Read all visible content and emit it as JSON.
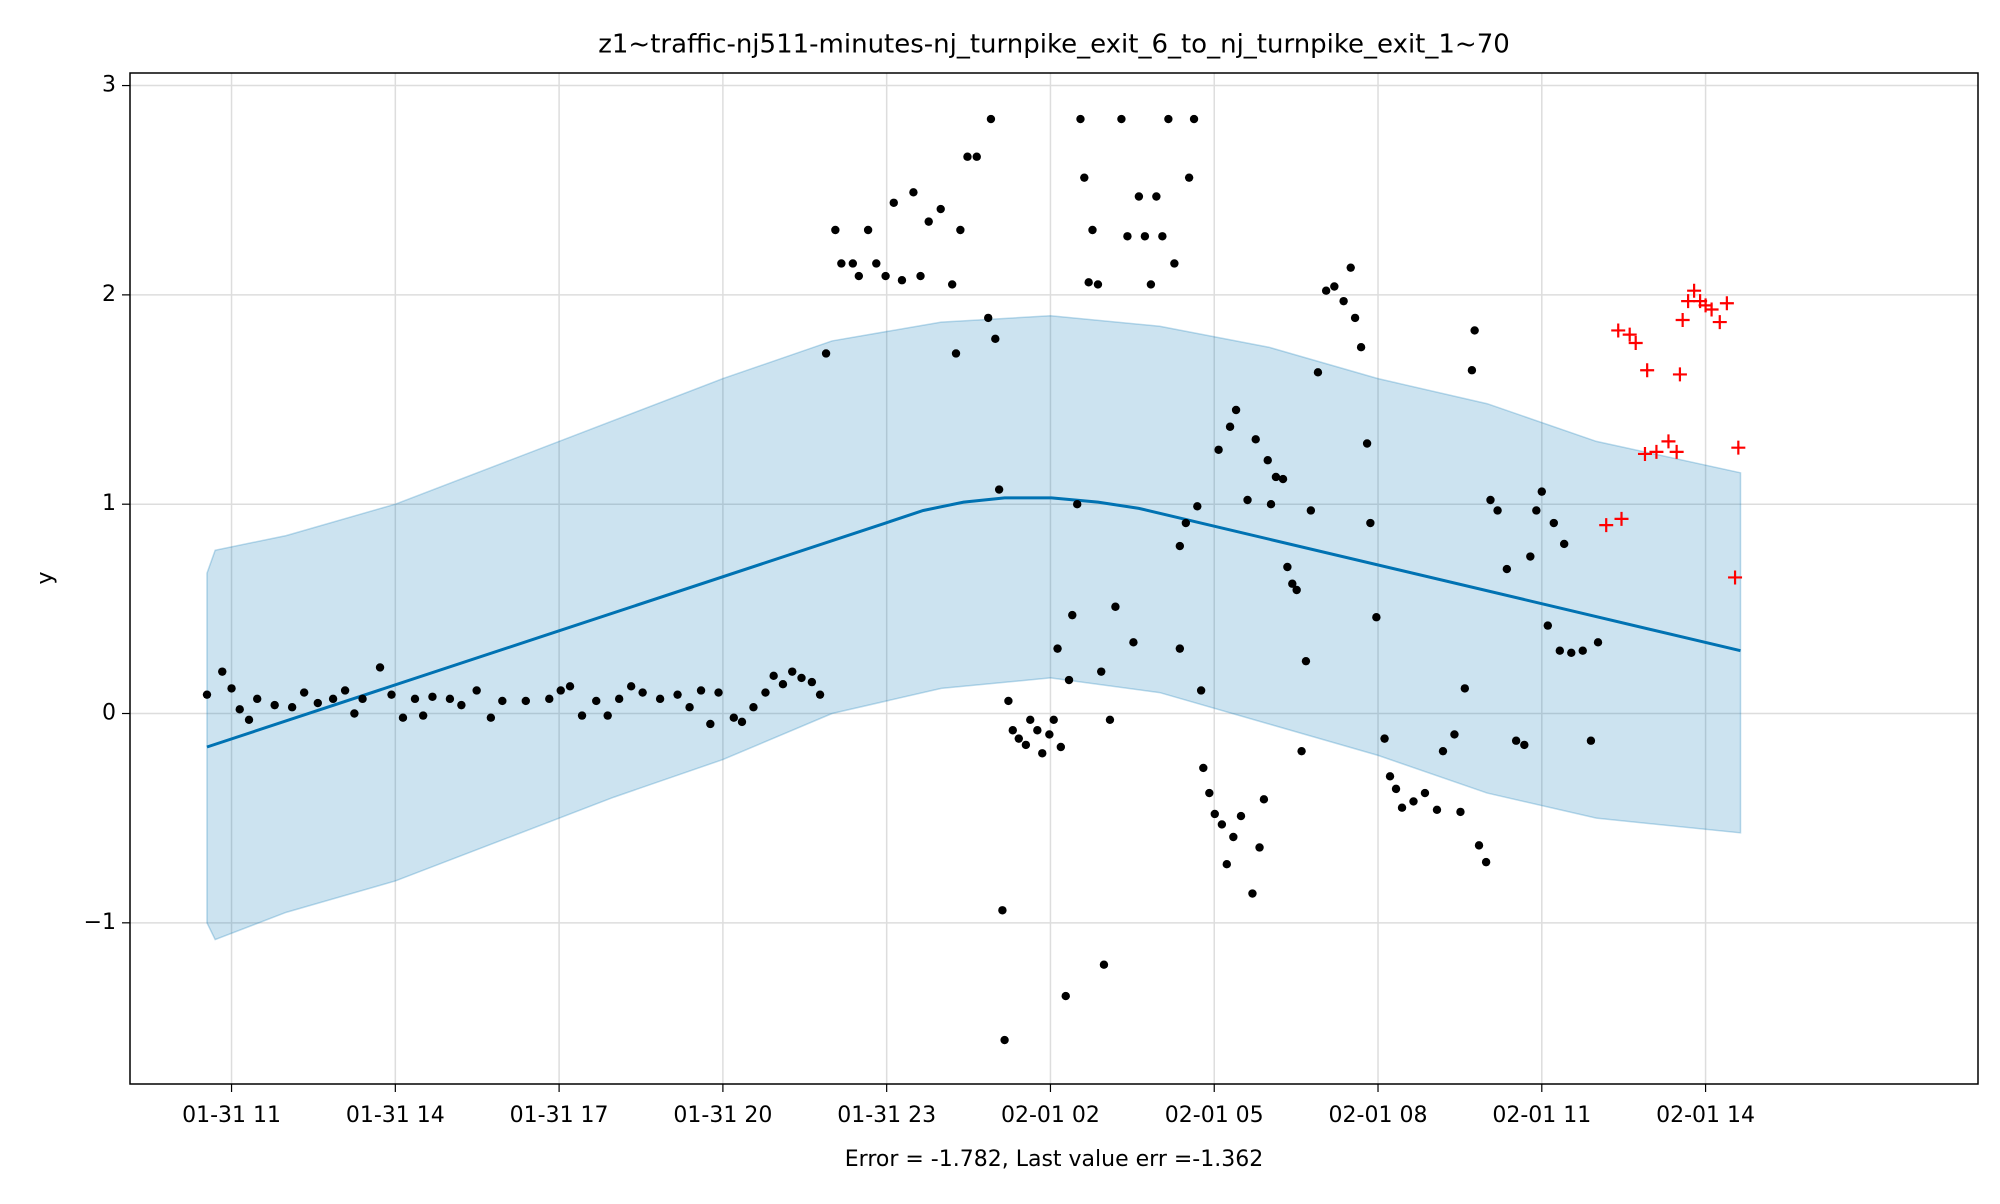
{
  "chart_data": {
    "type": "forecast",
    "title": "z1~traffic-nj511-minutes-nj_turnpike_exit_6_to_nj_turnpike_exit_1~70",
    "x_label": "Error = -1.782, Last value err =-1.362",
    "y_label": "y",
    "xlim": [
      9.14,
      42.99
    ],
    "ylim": [
      -1.77,
      3.06
    ],
    "xticks": [
      {
        "value": 11,
        "label": "01-31 11"
      },
      {
        "value": 14,
        "label": "01-31 14"
      },
      {
        "value": 17,
        "label": "01-31 17"
      },
      {
        "value": 20,
        "label": "01-31 20"
      },
      {
        "value": 23,
        "label": "01-31 23"
      },
      {
        "value": 26,
        "label": "02-01 02"
      },
      {
        "value": 29,
        "label": "02-01 05"
      },
      {
        "value": 32,
        "label": "02-01 08"
      },
      {
        "value": 35,
        "label": "02-01 11"
      },
      {
        "value": 38,
        "label": "02-01 14"
      }
    ],
    "yticks": [
      {
        "value": -1,
        "label": "−1"
      },
      0,
      1,
      2,
      3
    ],
    "grid": true,
    "series": [
      {
        "type": "line",
        "color": "#0072b2",
        "x": [
          10.55,
          22.98,
          23.67,
          24.41,
          25.16,
          26.02,
          26.87,
          27.62,
          38.64
        ],
        "values": [
          -0.16,
          0.91,
          0.97,
          1.01,
          1.03,
          1.03,
          1.01,
          0.98,
          0.3
        ]
      },
      {
        "type": "band",
        "color": "#0072b2",
        "x": [
          10.55,
          10.7,
          12,
          14,
          16,
          18,
          20,
          22,
          24,
          26,
          28,
          30,
          32,
          34,
          36,
          38.64
        ],
        "upper": [
          0.67,
          0.78,
          0.85,
          1.0,
          1.2,
          1.4,
          1.6,
          1.78,
          1.87,
          1.9,
          1.85,
          1.75,
          1.6,
          1.48,
          1.3,
          1.15
        ],
        "lower": [
          -1.0,
          -1.08,
          -0.95,
          -0.8,
          -0.6,
          -0.4,
          -0.22,
          0.0,
          0.12,
          0.17,
          0.1,
          -0.05,
          -0.2,
          -0.38,
          -0.5,
          -0.57
        ]
      },
      {
        "type": "scatter",
        "marker": "dot",
        "color": "#000000",
        "x": [
          10.55,
          10.83,
          11.0,
          11.15,
          11.32,
          11.47,
          11.79,
          12.11,
          12.33,
          12.58,
          12.86,
          13.08,
          13.25,
          13.4,
          13.72,
          13.93,
          14.14,
          14.36,
          14.51,
          14.68,
          15.0,
          15.21,
          15.49,
          15.75,
          15.96,
          16.39,
          16.82,
          17.03,
          17.2,
          17.42,
          17.68,
          17.89,
          18.1,
          18.32,
          18.53,
          18.85,
          19.17,
          19.39,
          19.6,
          19.77,
          19.92,
          20.2,
          20.35,
          20.56,
          20.78,
          20.93,
          21.1,
          21.27,
          21.44,
          21.63,
          21.78,
          21.89,
          22.06,
          22.17,
          22.38,
          22.49,
          22.66,
          22.81,
          22.98,
          23.13,
          23.28,
          23.49,
          23.62,
          23.77,
          23.99,
          24.2,
          24.27,
          24.35,
          24.48,
          24.65,
          24.91,
          24.86,
          24.99,
          25.06,
          25.12,
          25.16,
          25.23,
          25.31,
          25.42,
          25.55,
          25.63,
          25.76,
          25.85,
          25.98,
          26.06,
          26.13,
          26.19,
          26.28,
          26.34,
          26.4,
          26.49,
          26.55,
          26.62,
          26.7,
          26.77,
          26.87,
          26.93,
          26.98,
          27.09,
          27.19,
          27.3,
          27.41,
          27.52,
          27.62,
          27.73,
          27.84,
          27.94,
          28.05,
          28.16,
          28.27,
          28.37,
          28.37,
          28.48,
          28.54,
          28.63,
          28.69,
          28.76,
          28.8,
          28.91,
          29.01,
          29.08,
          29.14,
          29.23,
          29.29,
          29.35,
          29.4,
          29.49,
          29.61,
          29.7,
          29.76,
          29.83,
          29.91,
          29.98,
          30.04,
          30.13,
          30.26,
          30.34,
          30.43,
          30.51,
          30.6,
          30.68,
          30.77,
          30.9,
          31.05,
          31.2,
          31.37,
          31.5,
          31.58,
          31.69,
          31.8,
          31.86,
          31.97,
          32.12,
          32.22,
          32.33,
          32.44,
          32.65,
          32.86,
          33.08,
          33.19,
          33.4,
          33.51,
          33.59,
          33.72,
          33.77,
          33.85,
          33.98,
          34.06,
          34.19,
          34.36,
          34.53,
          34.68,
          34.79,
          34.9,
          35.0,
          35.11,
          35.22,
          35.33,
          35.41,
          35.54,
          35.75,
          35.9,
          36.03
        ],
        "values": [
          0.09,
          0.2,
          0.12,
          0.02,
          -0.03,
          0.07,
          0.04,
          0.03,
          0.1,
          0.05,
          0.07,
          0.11,
          0.0,
          0.07,
          0.22,
          0.09,
          -0.02,
          0.07,
          -0.01,
          0.08,
          0.07,
          0.04,
          0.11,
          -0.02,
          0.06,
          0.06,
          0.07,
          0.11,
          0.13,
          -0.01,
          0.06,
          -0.01,
          0.07,
          0.13,
          0.1,
          0.07,
          0.09,
          0.03,
          0.11,
          -0.05,
          0.1,
          -0.02,
          -0.04,
          0.03,
          0.1,
          0.18,
          0.14,
          0.2,
          0.17,
          0.15,
          0.09,
          1.72,
          2.31,
          2.15,
          2.15,
          2.09,
          2.31,
          2.15,
          2.09,
          2.44,
          2.07,
          2.49,
          2.09,
          2.35,
          2.41,
          2.05,
          1.72,
          2.31,
          2.66,
          2.66,
          2.84,
          1.89,
          1.79,
          1.07,
          -0.94,
          -1.56,
          0.06,
          -0.08,
          -0.12,
          -0.15,
          -0.03,
          -0.08,
          -0.19,
          -0.1,
          -0.03,
          0.31,
          -0.16,
          -1.35,
          0.16,
          0.47,
          1.0,
          2.84,
          2.56,
          2.06,
          2.31,
          2.05,
          0.2,
          -1.2,
          -0.03,
          0.51,
          2.84,
          2.28,
          0.34,
          2.47,
          2.28,
          2.05,
          2.47,
          2.28,
          2.84,
          2.15,
          0.31,
          0.8,
          0.91,
          2.56,
          2.84,
          0.99,
          0.11,
          -0.26,
          -0.38,
          -0.48,
          1.26,
          -0.53,
          -0.72,
          1.37,
          -0.59,
          1.45,
          -0.49,
          1.02,
          -0.86,
          1.31,
          -0.64,
          -0.41,
          1.21,
          1.0,
          1.13,
          1.12,
          0.7,
          0.62,
          0.59,
          -0.18,
          0.25,
          0.97,
          1.63,
          2.02,
          2.04,
          1.97,
          2.13,
          1.89,
          1.75,
          1.29,
          0.91,
          0.46,
          -0.12,
          -0.3,
          -0.36,
          -0.45,
          -0.42,
          -0.38,
          -0.46,
          -0.18,
          -0.1,
          -0.47,
          0.12,
          1.64,
          1.83,
          -0.63,
          -0.71,
          1.02,
          0.97,
          0.69,
          -0.13,
          -0.15,
          0.75,
          0.97,
          1.06,
          0.42,
          0.91,
          0.3,
          0.81,
          0.29,
          0.3,
          -0.13,
          0.34
        ]
      },
      {
        "type": "scatter",
        "marker": "plus",
        "color": "#ff0000",
        "x": [
          36.18,
          36.46,
          36.4,
          36.61,
          36.72,
          36.89,
          36.93,
          37.1,
          37.32,
          37.47,
          37.53,
          37.58,
          37.68,
          37.79,
          37.9,
          38.0,
          38.11,
          38.26,
          38.39,
          38.54,
          38.6
        ],
        "values": [
          0.9,
          0.93,
          1.83,
          1.81,
          1.77,
          1.24,
          1.64,
          1.25,
          1.3,
          1.25,
          1.62,
          1.88,
          1.97,
          2.02,
          1.97,
          1.95,
          1.93,
          1.87,
          1.96,
          0.65,
          1.27
        ]
      }
    ]
  }
}
